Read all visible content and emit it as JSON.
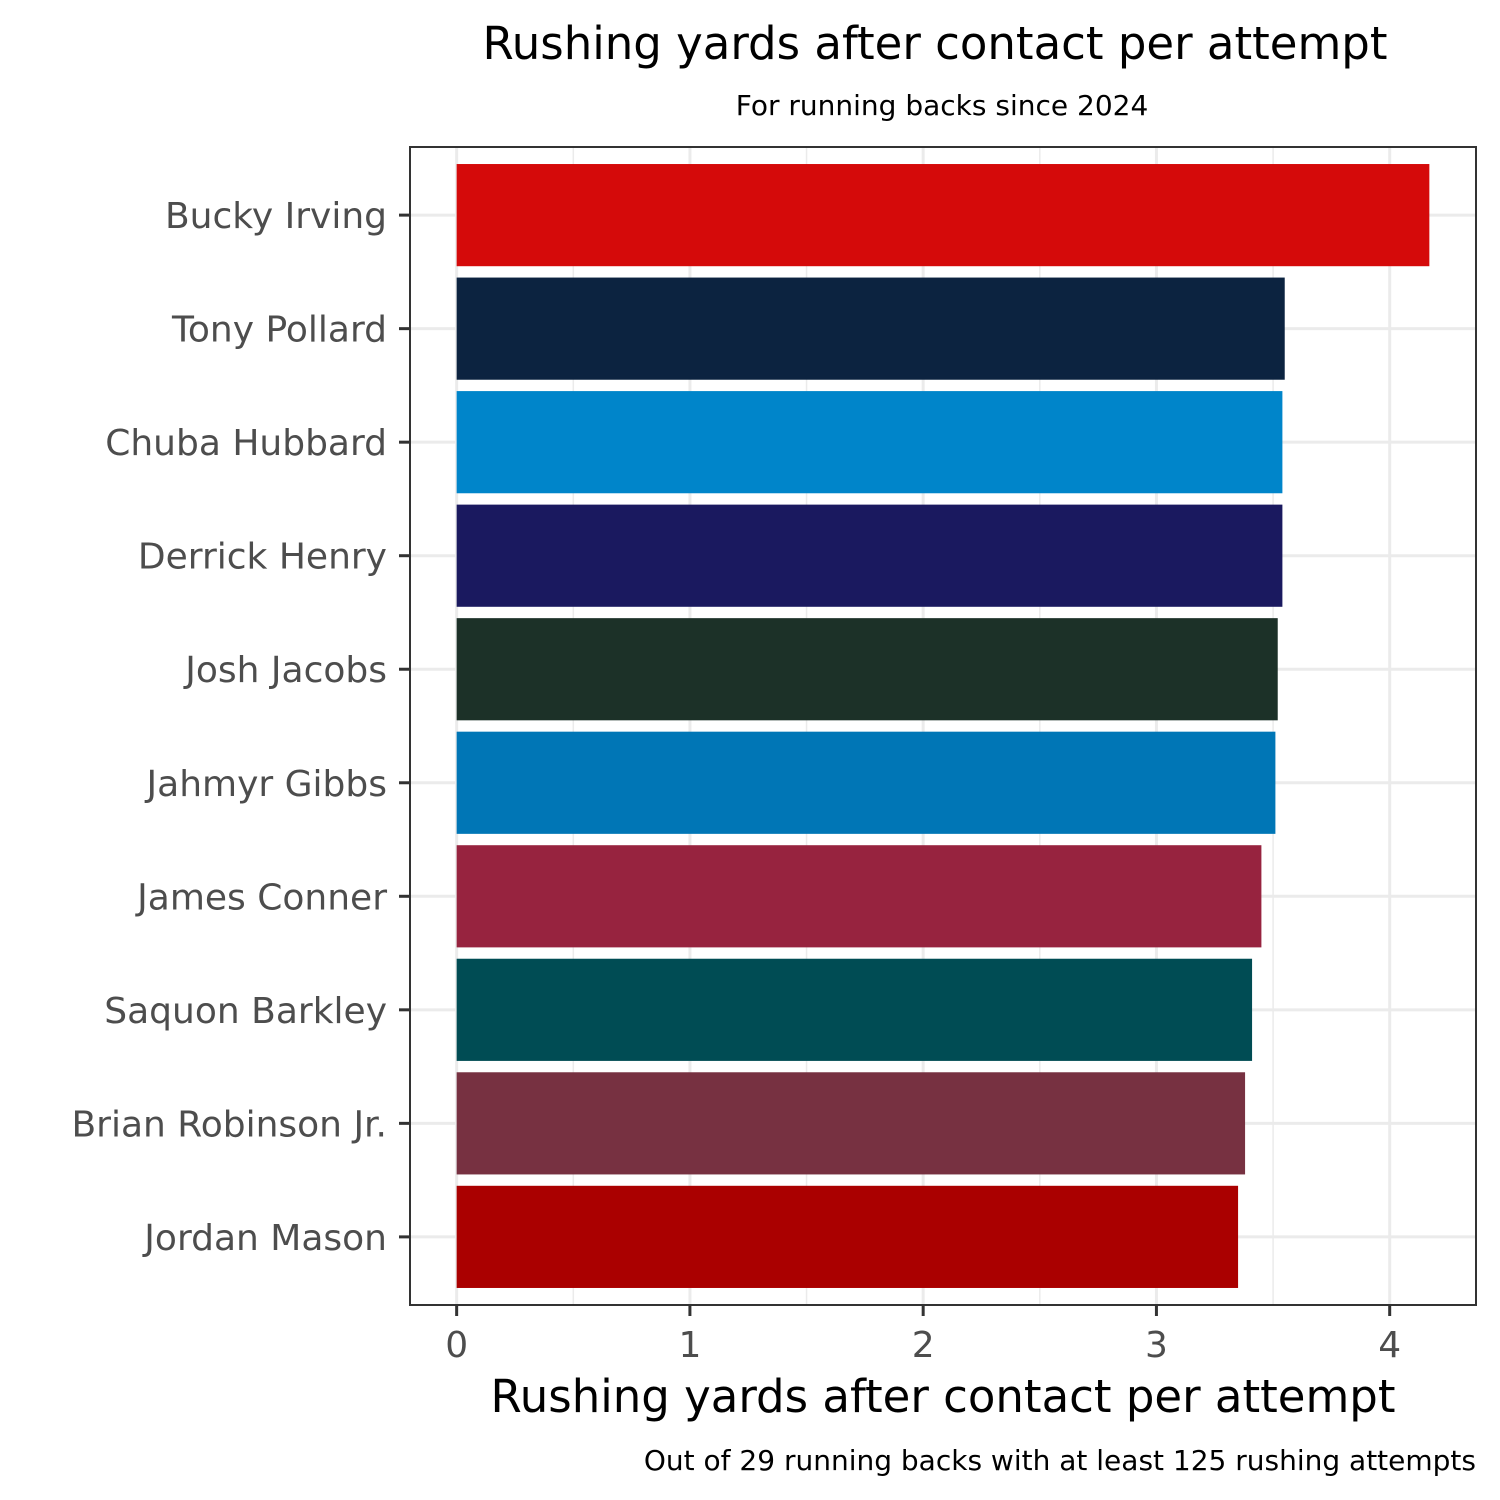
{
  "chart_data": {
    "type": "bar",
    "orientation": "horizontal",
    "title": "Rushing yards after contact per attempt",
    "subtitle": "For running backs since 2024",
    "xlabel": "Rushing yards after contact per attempt",
    "ylabel": "",
    "caption": "Out of 29 running backs with at least 125 rushing attempts",
    "xlim": [
      -0.2,
      4.37
    ],
    "x_ticks": [
      0,
      1,
      2,
      3,
      4
    ],
    "grid": true,
    "legend": "none",
    "bars": [
      {
        "label": "Bucky Irving",
        "value": 4.17,
        "color": "#D50A0A"
      },
      {
        "label": "Tony Pollard",
        "value": 3.55,
        "color": "#0C2340"
      },
      {
        "label": "Chuba Hubbard",
        "value": 3.54,
        "color": "#0085CA"
      },
      {
        "label": "Derrick Henry",
        "value": 3.54,
        "color": "#1A195F"
      },
      {
        "label": "Josh Jacobs",
        "value": 3.52,
        "color": "#1C3128"
      },
      {
        "label": "Jahmyr Gibbs",
        "value": 3.51,
        "color": "#0076B6"
      },
      {
        "label": "James Conner",
        "value": 3.45,
        "color": "#97233F"
      },
      {
        "label": "Saquon Barkley",
        "value": 3.41,
        "color": "#004C54"
      },
      {
        "label": "Brian Robinson Jr.",
        "value": 3.38,
        "color": "#773141"
      },
      {
        "label": "Jordan Mason",
        "value": 3.35,
        "color": "#AA0000"
      }
    ]
  }
}
